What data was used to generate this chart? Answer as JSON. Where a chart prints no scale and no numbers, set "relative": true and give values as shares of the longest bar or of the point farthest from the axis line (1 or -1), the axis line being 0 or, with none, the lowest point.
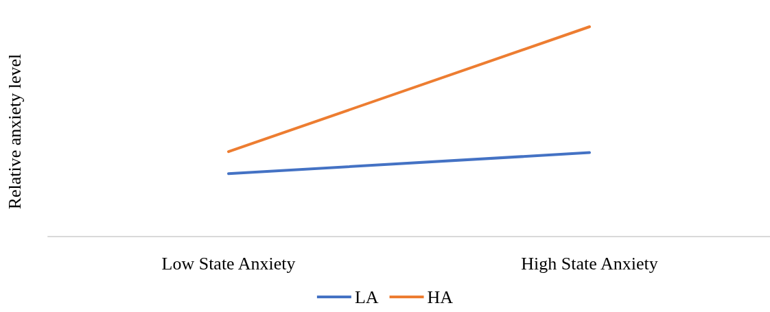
{
  "chart_data": {
    "type": "line",
    "ylabel": "Relative anxiety level",
    "relative": true,
    "categories": [
      "Low State Anxiety",
      "High State Anxiety"
    ],
    "series": [
      {
        "name": "LA",
        "color": "#4472c4",
        "values": [
          0.3,
          0.4
        ]
      },
      {
        "name": "HA",
        "color": "#ed7d31",
        "values": [
          0.405,
          1
        ]
      }
    ],
    "legend": "bottom",
    "grid": false,
    "marker": "none",
    "line_style": "solid"
  }
}
